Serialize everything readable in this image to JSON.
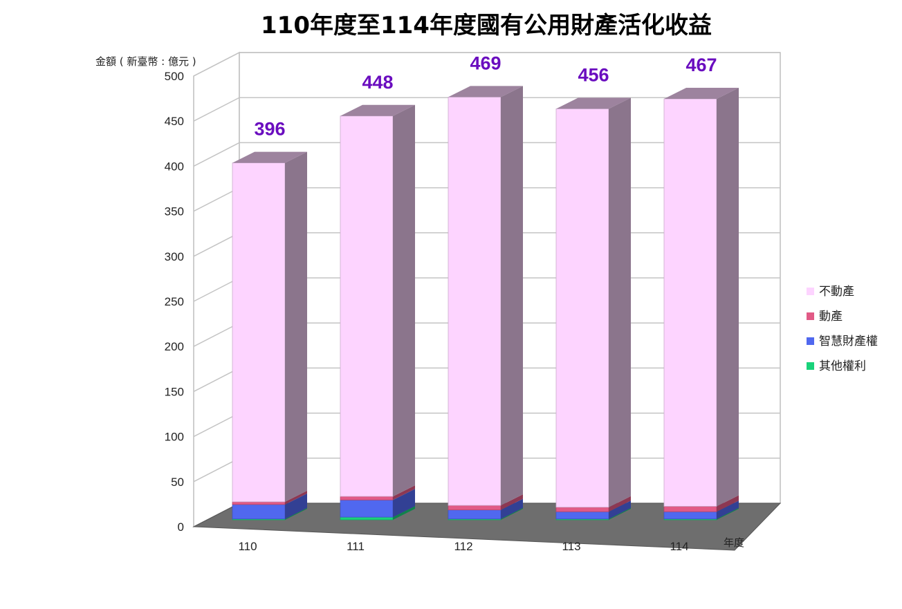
{
  "chart_data": {
    "type": "bar",
    "stacked": true,
    "title": "110年度至114年度國有公用財產活化收益",
    "xlabel": "年度",
    "ylabel": "金額 ( 新臺幣 : 億元 )",
    "categories": [
      "110",
      "111",
      "112",
      "113",
      "114"
    ],
    "ylim": [
      0,
      500
    ],
    "yticks": [
      0,
      50,
      100,
      150,
      200,
      250,
      300,
      350,
      400,
      450,
      500
    ],
    "grid": true,
    "legend_position": "right",
    "totals": [
      396,
      448,
      469,
      456,
      467
    ],
    "totals_color": "#6a0dbf",
    "series": [
      {
        "name": "其他權利",
        "color": "#19d27a",
        "values": [
          1,
          3,
          1,
          1,
          1
        ]
      },
      {
        "name": "智慧財產權",
        "color": "#5068ef",
        "values": [
          16,
          19,
          10,
          8,
          8
        ]
      },
      {
        "name": "動產",
        "color": "#e15a86",
        "values": [
          3,
          4,
          5,
          5,
          6
        ]
      },
      {
        "name": "不動產",
        "color": "#fdd4ff",
        "values": [
          376,
          422,
          453,
          442,
          452
        ]
      }
    ]
  }
}
